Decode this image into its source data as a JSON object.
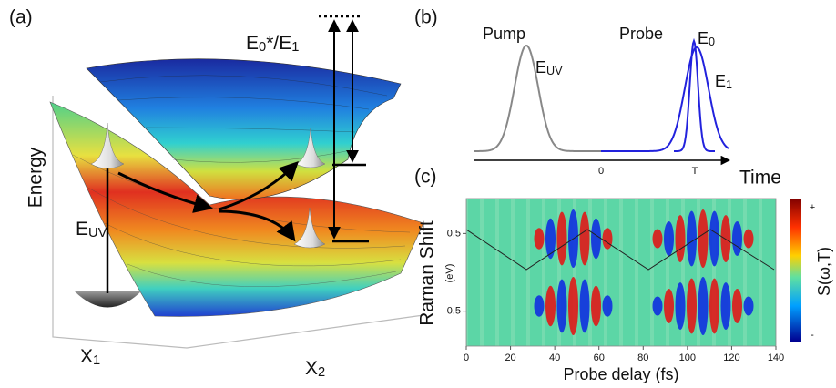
{
  "panel_a": {
    "tag": "(a)",
    "level_label": [
      "E",
      "0",
      "*/E",
      "1"
    ],
    "axis_energy": "Energy",
    "excitation": [
      "E",
      "UV"
    ],
    "coord_1": [
      "X",
      "1"
    ],
    "coord_2": [
      "X",
      "2"
    ]
  },
  "panel_b": {
    "tag": "(b)",
    "pump": "Pump",
    "pump_label": [
      "E",
      "UV"
    ],
    "probe": "Probe",
    "probe_label_0": [
      "E",
      "0"
    ],
    "probe_label_1": [
      "E",
      "1"
    ],
    "time_zero": "0",
    "time_T": "T",
    "axis_time": "Time"
  },
  "panel_c": {
    "tag": "(c)",
    "y_label": "Raman Shift",
    "y_unit": "(eV)",
    "x_label": "Probe delay (fs)",
    "xticks": [
      0,
      20,
      40,
      60,
      80,
      100,
      120,
      140
    ],
    "xlim": [
      0,
      140
    ],
    "yticks": [
      0.5,
      -0.5
    ],
    "ylim": [
      -0.95,
      0.95
    ],
    "colorbar_label": "S(ω,T)",
    "colorbar_max": "+",
    "colorbar_min": "-"
  }
}
